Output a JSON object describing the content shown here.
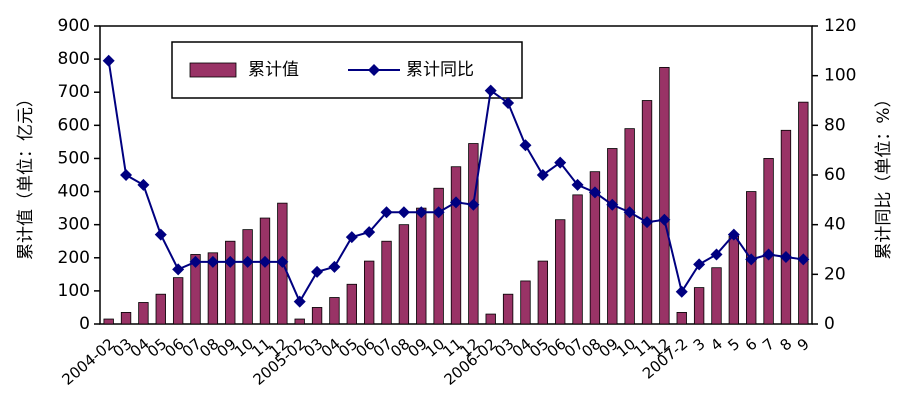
{
  "chart_data": {
    "type": "bar-line",
    "categories": [
      "2004-02",
      "03",
      "04",
      "05",
      "06",
      "07",
      "08",
      "09",
      "10",
      "11",
      "12",
      "2005-02",
      "03",
      "04",
      "05",
      "06",
      "07",
      "08",
      "09",
      "10",
      "11",
      "12",
      "2006-02",
      "03",
      "04",
      "05",
      "06",
      "07",
      "08",
      "09",
      "10",
      "11",
      "12",
      "2007-2",
      "3",
      "4",
      "5",
      "6",
      "7",
      "8",
      "9"
    ],
    "series": [
      {
        "name": "累计值",
        "type": "bar",
        "color": "#993366",
        "values": [
          15,
          35,
          65,
          90,
          140,
          210,
          215,
          250,
          285,
          320,
          365,
          15,
          50,
          80,
          120,
          190,
          250,
          300,
          350,
          410,
          475,
          545,
          30,
          90,
          130,
          190,
          315,
          390,
          460,
          530,
          590,
          675,
          775,
          35,
          110,
          170,
          265,
          400,
          500,
          585,
          670
        ]
      },
      {
        "name": "累计同比",
        "type": "line",
        "axis": "y2",
        "color": "#000080",
        "values": [
          106,
          60,
          56,
          36,
          22,
          25,
          25,
          25,
          25,
          25,
          25,
          9,
          21,
          23,
          35,
          37,
          45,
          45,
          45,
          45,
          49,
          48,
          94,
          89,
          72,
          60,
          65,
          56,
          53,
          48,
          45,
          41,
          42,
          13,
          24,
          28,
          36,
          26,
          28,
          27,
          26
        ]
      }
    ],
    "ylabel": "累计值（单位：亿元）",
    "y2label": "累计同比（单位：%）",
    "ylim": [
      0,
      900
    ],
    "yticks": [
      0,
      100,
      200,
      300,
      400,
      500,
      600,
      700,
      800,
      900
    ],
    "y2lim": [
      0,
      120
    ],
    "y2ticks": [
      0,
      20,
      40,
      60,
      80,
      100,
      120
    ],
    "legend": "top-left"
  }
}
